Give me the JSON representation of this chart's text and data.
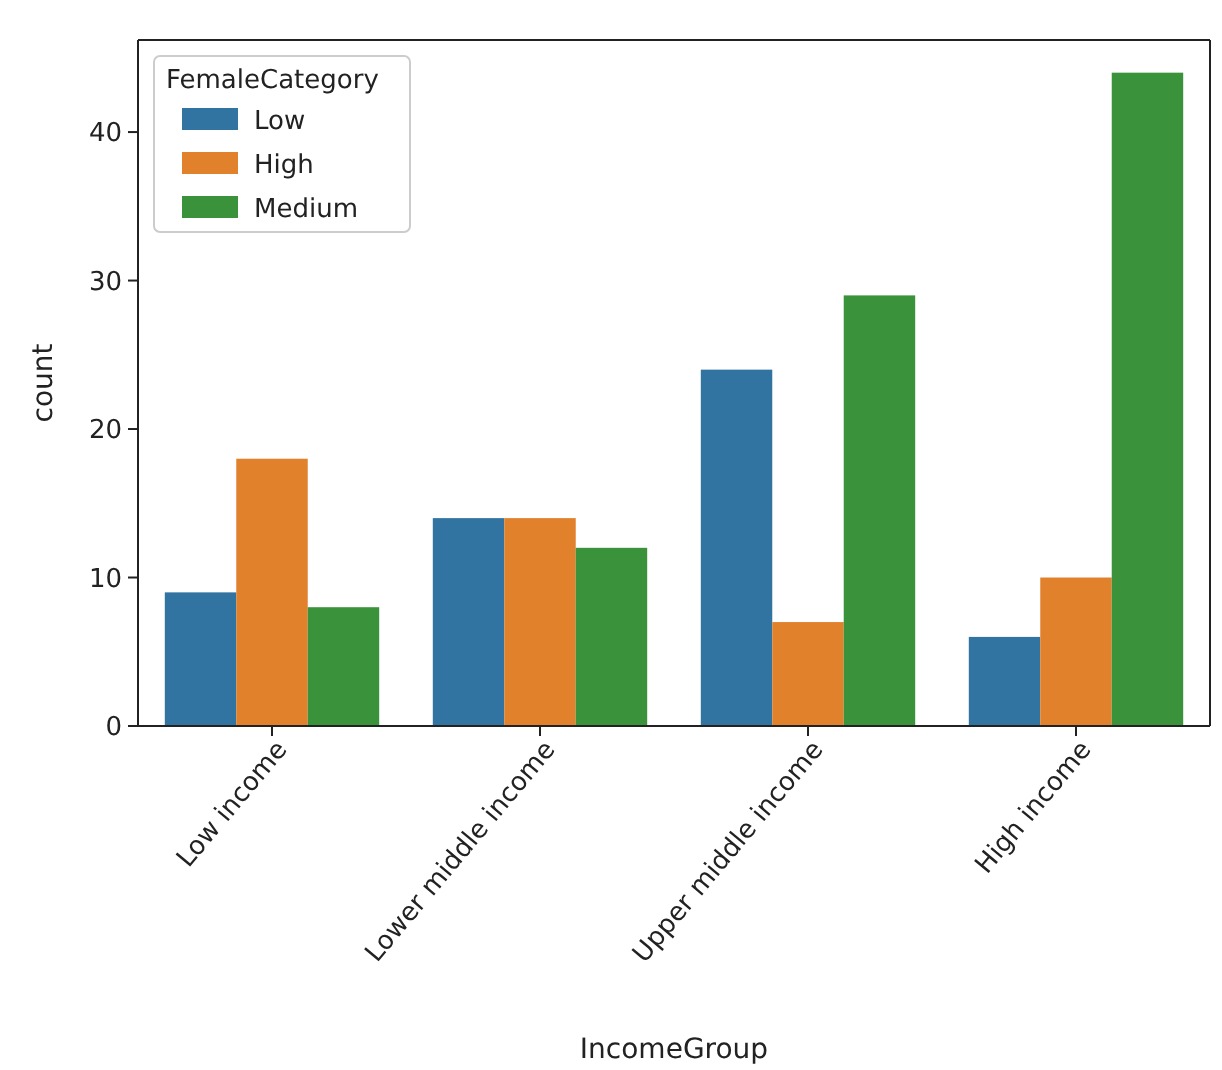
{
  "chart_data": {
    "type": "bar",
    "xlabel": "IncomeGroup",
    "ylabel": "count",
    "legend_title": "FemaleCategory",
    "categories": [
      "Low income",
      "Lower middle income",
      "Upper middle income",
      "High income"
    ],
    "series": [
      {
        "name": "Low",
        "color": "#3274a1",
        "values": [
          9,
          14,
          24,
          6
        ]
      },
      {
        "name": "High",
        "color": "#e1812c",
        "values": [
          18,
          14,
          7,
          10
        ]
      },
      {
        "name": "Medium",
        "color": "#3a923a",
        "values": [
          8,
          12,
          29,
          44
        ]
      }
    ],
    "ylim": [
      0,
      46.2
    ],
    "yticks": [
      0,
      10,
      20,
      30,
      40
    ],
    "grid": false,
    "legend": "top left"
  }
}
